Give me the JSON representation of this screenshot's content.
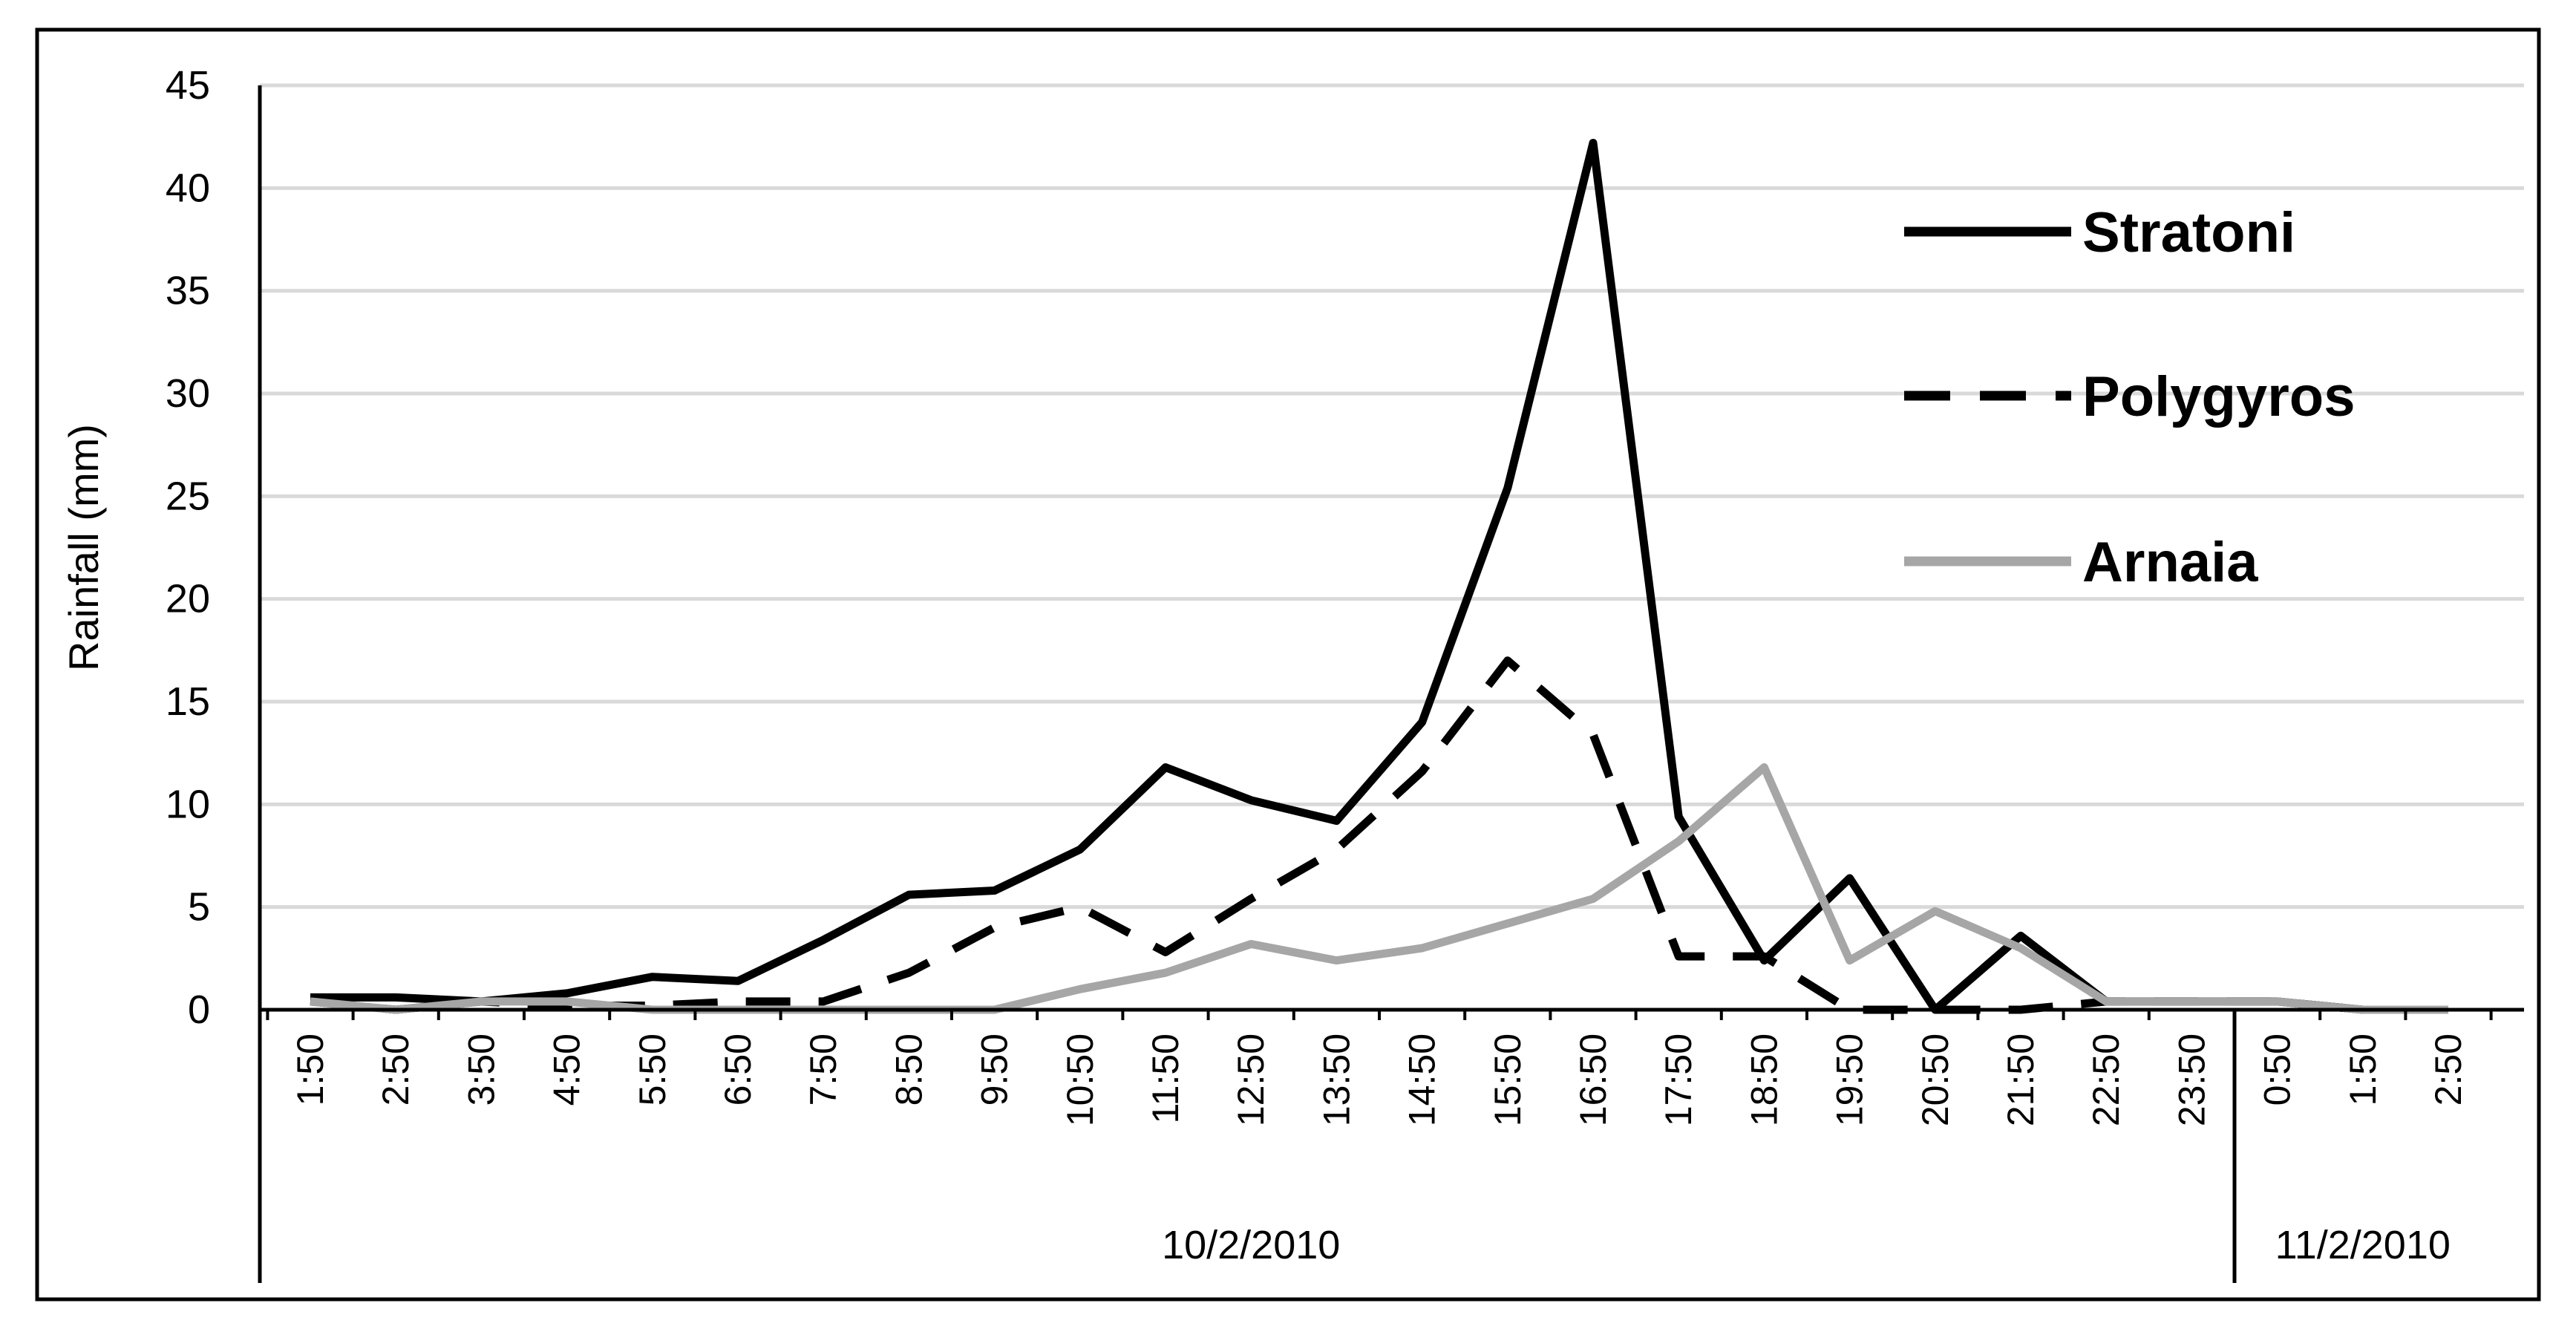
{
  "chart_data": {
    "type": "line",
    "ylabel": "Rainfall (mm)",
    "xlabel": "",
    "ylim": [
      0,
      45
    ],
    "yticks": [
      0,
      5,
      10,
      15,
      20,
      25,
      30,
      35,
      40,
      45
    ],
    "grid": true,
    "legend_position": "top-right",
    "categories": [
      "1:50",
      "2:50",
      "3:50",
      "4:50",
      "5:50",
      "6:50",
      "7:50",
      "8:50",
      "9:50",
      "10:50",
      "11:50",
      "12:50",
      "13:50",
      "14:50",
      "15:50",
      "16:50",
      "17:50",
      "18:50",
      "19:50",
      "20:50",
      "21:50",
      "22:50",
      "23:50",
      "0:50",
      "1:50",
      "2:50"
    ],
    "date_groups": [
      {
        "label": "10/2/2010",
        "start": 0,
        "end": 22
      },
      {
        "label": "11/2/2010",
        "start": 23,
        "end": 25
      }
    ],
    "series": [
      {
        "name": "Stratoni",
        "style": "solid",
        "color": "#000000",
        "values": [
          0.6,
          0.6,
          0.4,
          0.8,
          1.6,
          1.4,
          3.4,
          5.6,
          5.8,
          7.8,
          11.8,
          10.2,
          9.2,
          14.0,
          25.4,
          42.2,
          9.4,
          2.4,
          6.4,
          0.0,
          3.6,
          0.4,
          0.4,
          0.4,
          0.0,
          0.0
        ]
      },
      {
        "name": "Polygyros",
        "style": "dashed",
        "color": "#000000",
        "values": [
          0.4,
          0.0,
          0.4,
          0.2,
          0.2,
          0.4,
          0.4,
          1.8,
          4.0,
          5.0,
          2.8,
          5.4,
          7.8,
          11.6,
          17.0,
          13.4,
          2.6,
          2.6,
          0.0,
          0.0,
          0.0,
          0.4,
          0.4,
          0.4,
          0.0,
          0.0
        ]
      },
      {
        "name": "Arnaia",
        "style": "solid",
        "color": "#a6a6a6",
        "values": [
          0.4,
          0.0,
          0.4,
          0.4,
          0.0,
          0.0,
          0.0,
          0.0,
          0.0,
          1.0,
          1.8,
          3.2,
          2.4,
          3.0,
          4.2,
          5.4,
          8.2,
          11.8,
          2.4,
          4.8,
          3.0,
          0.4,
          0.4,
          0.4,
          0.0,
          0.0
        ]
      }
    ]
  }
}
